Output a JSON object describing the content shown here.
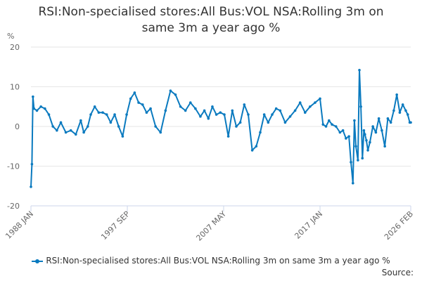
{
  "chart_data": {
    "type": "line",
    "title_lines": [
      "RSI:Non-specialised stores:All Bus:VOL NSA:Rolling 3m on",
      "same 3m a year ago %"
    ],
    "ylabel": "%",
    "ylim": [
      -20,
      20
    ],
    "yticks": [
      20,
      10,
      0,
      -10,
      -20
    ],
    "xlim": [
      1988.0,
      2026.1
    ],
    "xticks": [
      {
        "label": "1988 JAN",
        "x": 1988.0
      },
      {
        "label": "1997 SEP",
        "x": 1997.67
      },
      {
        "label": "2007 MAY",
        "x": 2007.33
      },
      {
        "label": "2017 JAN",
        "x": 2017.0
      },
      {
        "label": "2026 FEB",
        "x": 2026.1
      }
    ],
    "grid": true,
    "legend_position": "bottom",
    "series": [
      {
        "name": "RSI:Non-specialised stores:All Bus:VOL NSA:Rolling 3m on same 3m a year ago %",
        "color": "#0a7abf",
        "x": [
          1988.0,
          1988.1,
          1988.2,
          1988.3,
          1988.6,
          1989.0,
          1989.4,
          1989.8,
          1990.2,
          1990.6,
          1991.0,
          1991.5,
          1992.0,
          1992.5,
          1993.0,
          1993.3,
          1993.7,
          1994.0,
          1994.4,
          1994.8,
          1995.2,
          1995.6,
          1996.0,
          1996.4,
          1996.8,
          1997.2,
          1997.6,
          1998.0,
          1998.4,
          1998.8,
          1999.2,
          1999.6,
          2000.0,
          2000.5,
          2001.0,
          2001.5,
          2002.0,
          2002.5,
          2003.0,
          2003.5,
          2004.0,
          2004.5,
          2005.0,
          2005.4,
          2005.8,
          2006.2,
          2006.6,
          2007.0,
          2007.4,
          2007.8,
          2008.2,
          2008.6,
          2009.0,
          2009.4,
          2009.8,
          2010.2,
          2010.6,
          2011.0,
          2011.4,
          2011.8,
          2012.2,
          2012.6,
          2013.0,
          2013.5,
          2014.0,
          2014.5,
          2015.0,
          2015.5,
          2016.0,
          2016.5,
          2017.0,
          2017.3,
          2017.6,
          2017.9,
          2018.2,
          2018.6,
          2019.0,
          2019.3,
          2019.6,
          2019.9,
          2020.1,
          2020.3,
          2020.45,
          2020.6,
          2020.8,
          2020.95,
          2021.1,
          2021.25,
          2021.4,
          2021.5,
          2021.65,
          2021.8,
          2022.0,
          2022.3,
          2022.6,
          2022.9,
          2023.2,
          2023.5,
          2023.8,
          2024.1,
          2024.4,
          2024.7,
          2025.0,
          2025.3,
          2025.6,
          2025.8,
          2026.0,
          2026.1
        ],
        "values": [
          -15.2,
          -9.5,
          7.5,
          4.5,
          4.0,
          5.0,
          4.5,
          3.0,
          0.0,
          -1.0,
          1.0,
          -1.5,
          -1.0,
          -2.0,
          1.5,
          -1.5,
          0.0,
          3.0,
          5.0,
          3.5,
          3.5,
          3.0,
          1.0,
          3.0,
          0.0,
          -2.5,
          3.0,
          7.0,
          8.5,
          6.0,
          5.5,
          3.5,
          4.5,
          0.0,
          -1.5,
          4.0,
          9.0,
          8.0,
          5.0,
          4.0,
          6.0,
          4.5,
          2.5,
          4.0,
          2.0,
          5.0,
          3.0,
          3.5,
          3.0,
          -2.5,
          4.0,
          0.0,
          1.0,
          5.5,
          3.0,
          -6.0,
          -5.0,
          -1.5,
          3.0,
          1.0,
          3.0,
          4.5,
          4.0,
          1.0,
          2.5,
          4.0,
          6.0,
          3.5,
          5.0,
          6.0,
          7.0,
          0.5,
          0.0,
          1.5,
          0.5,
          0.0,
          -1.5,
          -1.0,
          -3.0,
          -2.5,
          -9.0,
          -14.3,
          1.5,
          -5.0,
          -8.5,
          14.2,
          5.0,
          -8.0,
          -1.0,
          -2.0,
          -3.5,
          -6.0,
          -4.0,
          0.0,
          -1.5,
          2.0,
          -1.0,
          -5.0,
          2.0,
          1.0,
          4.0,
          8.0,
          3.5,
          5.5,
          4.0,
          3.0,
          1.0,
          1.0
        ]
      }
    ]
  },
  "source": {
    "label": "Source:"
  }
}
